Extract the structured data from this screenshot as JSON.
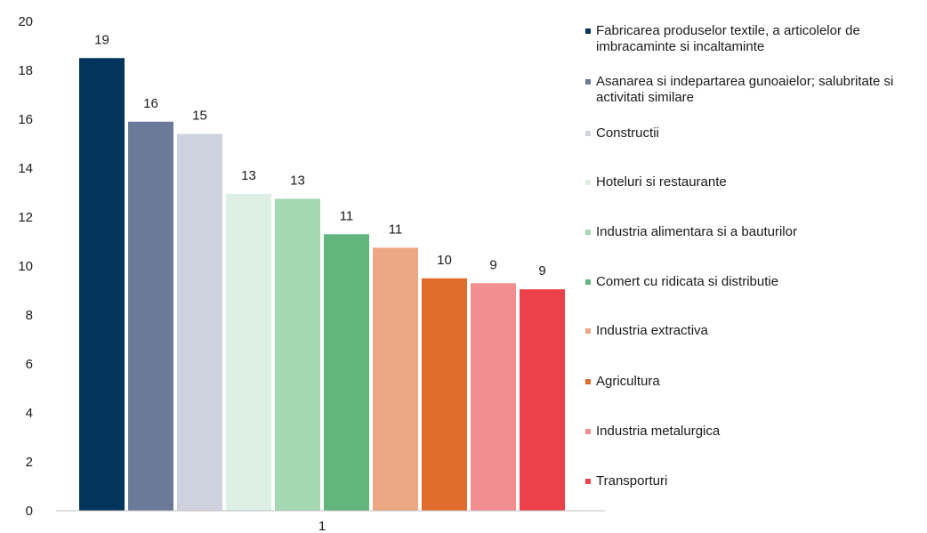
{
  "chart_data": {
    "type": "bar",
    "categories": [
      "1"
    ],
    "ylim": [
      0,
      20
    ],
    "yticks": [
      0,
      2,
      4,
      6,
      8,
      10,
      12,
      14,
      16,
      18,
      20
    ],
    "grid": false,
    "legend_position": "right",
    "series": [
      {
        "name": "Fabricarea produselor textile, a articolelor de imbracaminte si incaltaminte",
        "value": 18.5,
        "label": "19",
        "color": "#03355c"
      },
      {
        "name": "Asanarea si indepartarea gunoaielor; salubritate si activitati similare",
        "value": 15.9,
        "label": "16",
        "color": "#6b7a99"
      },
      {
        "name": "Constructii",
        "value": 15.4,
        "label": "15",
        "color": "#cdd2de"
      },
      {
        "name": "Hoteluri si restaurante",
        "value": 12.95,
        "label": "13",
        "color": "#ddf0e3"
      },
      {
        "name": "Industria alimentara si a bauturilor",
        "value": 12.75,
        "label": "13",
        "color": "#a3d8b0"
      },
      {
        "name": "Comert cu ridicata si distributie",
        "value": 11.3,
        "label": "11",
        "color": "#62b57c"
      },
      {
        "name": "Industria extractiva",
        "value": 10.75,
        "label": "11",
        "color": "#eca883"
      },
      {
        "name": "Agricultura",
        "value": 9.5,
        "label": "10",
        "color": "#e06c2b"
      },
      {
        "name": "Industria metalurgica",
        "value": 9.3,
        "label": "9",
        "color": "#f28e8f"
      },
      {
        "name": "Transporturi",
        "value": 9.05,
        "label": "9",
        "color": "#ec4149"
      }
    ]
  }
}
